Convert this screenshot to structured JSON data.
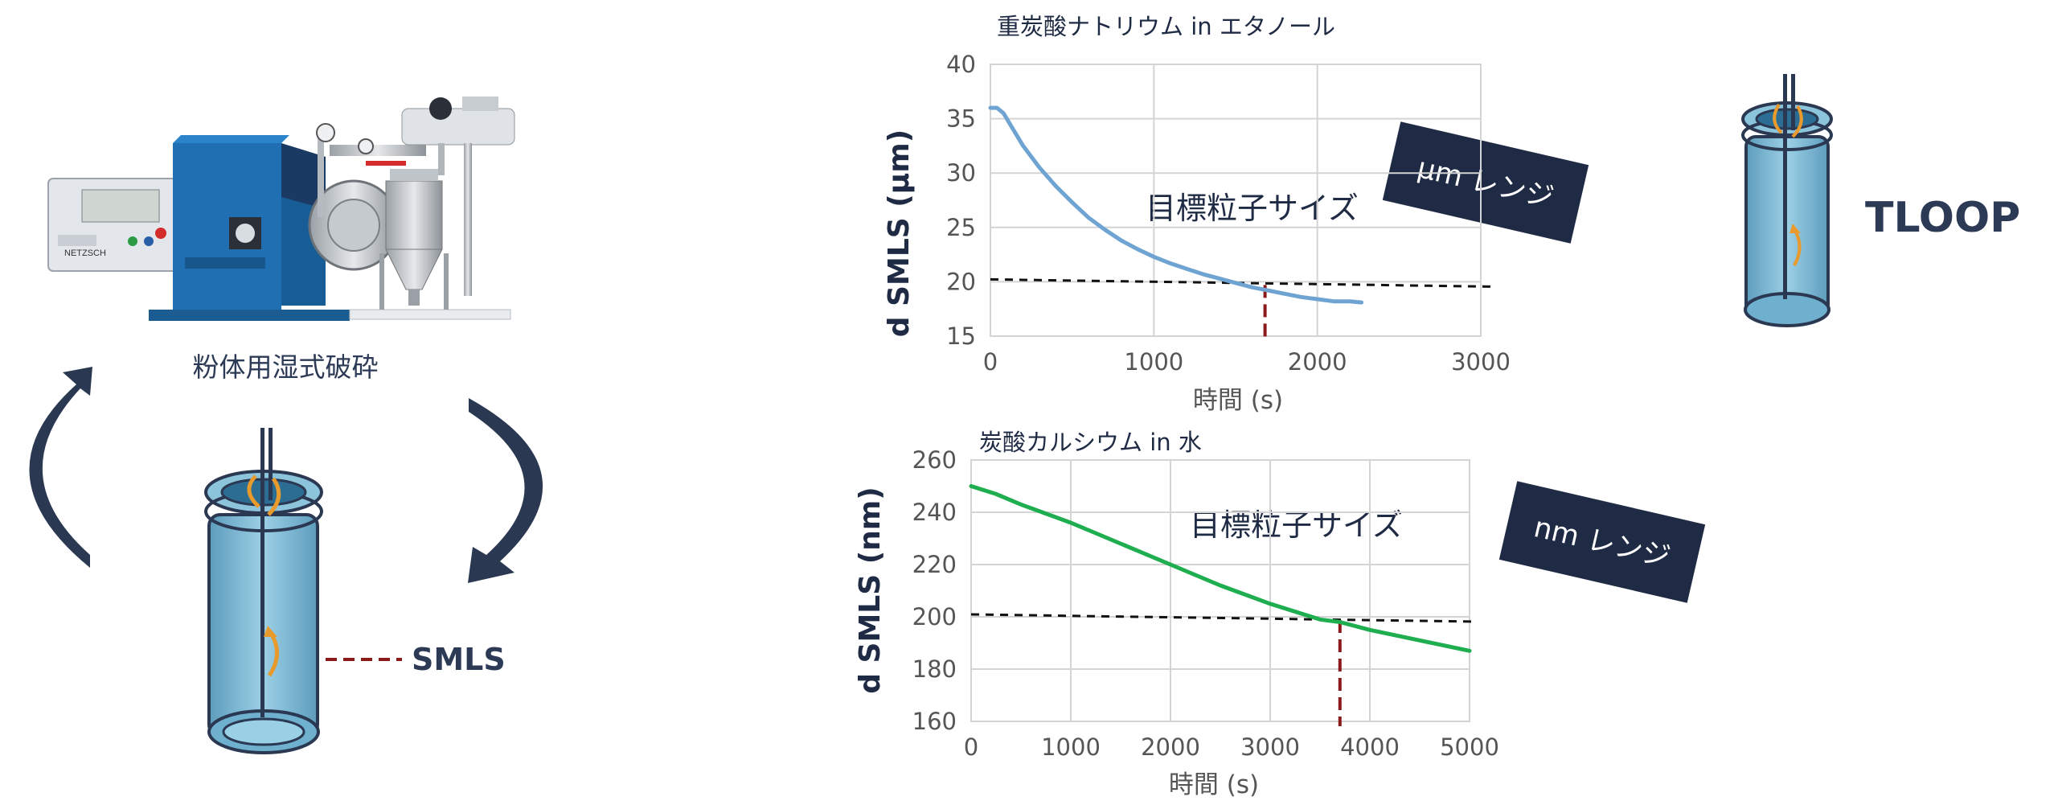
{
  "left_panel": {
    "machine_caption": "粉体用湿式破砕",
    "machine_brand": "NETZSCH",
    "smls_label": "SMLS"
  },
  "right_panel": {
    "tloop_label": "TLOOP"
  },
  "colors": {
    "navy": "#1f2a44",
    "vial": "#7fb8d4",
    "orange": "#e89a2c",
    "series_blue": "#6fa3d2",
    "series_green": "#1fae4f",
    "target_marker": "#8b1a1a"
  },
  "chart_data": [
    {
      "type": "line",
      "title": "重炭酸ナトリウム in エタノール",
      "xlabel": "時間 (s)",
      "ylabel": "d SMLS (µm)",
      "xlim": [
        0,
        3000
      ],
      "ylim": [
        15,
        40
      ],
      "xticks": [
        "0",
        "1000",
        "2000",
        "3000"
      ],
      "yticks": [
        "15",
        "20",
        "25",
        "30",
        "35",
        "40"
      ],
      "grid": true,
      "annotation": "目標粒子サイズ",
      "range_box": "µm レンジ",
      "target_value": 20,
      "target_time": 1680,
      "series": [
        {
          "x": [
            0,
            40,
            80,
            120,
            200,
            300,
            400,
            500,
            600,
            700,
            800,
            900,
            1000,
            1100,
            1200,
            1300,
            1400,
            1500,
            1600,
            1700,
            1800,
            1900,
            2000,
            2100,
            2200,
            2270
          ],
          "y": [
            36.0,
            36.0,
            35.5,
            34.5,
            32.5,
            30.5,
            28.8,
            27.3,
            25.9,
            24.8,
            23.8,
            23.0,
            22.3,
            21.7,
            21.2,
            20.7,
            20.3,
            19.9,
            19.5,
            19.2,
            18.9,
            18.6,
            18.4,
            18.2,
            18.2,
            18.1
          ]
        }
      ]
    },
    {
      "type": "line",
      "title": "炭酸カルシウム in 水",
      "xlabel": "時間 (s)",
      "ylabel": "d SMLS (nm)",
      "xlim": [
        0,
        5000
      ],
      "ylim": [
        160,
        260
      ],
      "xticks": [
        "0",
        "1000",
        "2000",
        "3000",
        "4000",
        "5000"
      ],
      "yticks": [
        "160",
        "180",
        "200",
        "220",
        "240",
        "260"
      ],
      "grid": true,
      "annotation": "目標粒子サイズ",
      "range_box": "nm レンジ",
      "target_value": 200,
      "target_time": 3700,
      "series": [
        {
          "x": [
            0,
            250,
            500,
            1000,
            1500,
            2000,
            2500,
            3000,
            3500,
            3700,
            4000,
            4500,
            5000
          ],
          "y": [
            250,
            247,
            243,
            236,
            228,
            220,
            212,
            205,
            199,
            198,
            195,
            191,
            187
          ]
        }
      ]
    }
  ]
}
